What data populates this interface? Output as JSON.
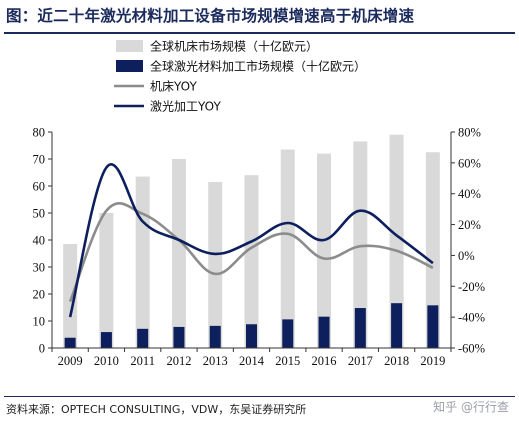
{
  "title": "图：近二十年激光材料加工设备市场规模增速高于机床增速",
  "source": "资料来源：OPTECH CONSULTING，VDW，东吴证券研究所",
  "watermark": "知乎 @行行查",
  "colors": {
    "title": "#1a2a5c",
    "gray_bar": "#d9d9d9",
    "navy_bar": "#0d1f5c",
    "gray_line": "#8c8c8c",
    "navy_line": "#0d1f5c"
  },
  "chart_data": {
    "type": "bar+line",
    "categories": [
      "2009",
      "2010",
      "2011",
      "2012",
      "2013",
      "2014",
      "2015",
      "2016",
      "2017",
      "2018",
      "2019"
    ],
    "series": [
      {
        "name": "全球机床市场规模（十亿欧元）",
        "kind": "bar",
        "axis": "left",
        "values": [
          38.5,
          50,
          63.5,
          70,
          61.5,
          64,
          73.5,
          72,
          76.5,
          79,
          72.5
        ]
      },
      {
        "name": "全球激光材料加工市场规模（十亿欧元）",
        "kind": "bar",
        "axis": "left",
        "values": [
          3.8,
          5.9,
          7.1,
          7.8,
          8.2,
          8.8,
          10.6,
          11.6,
          14.8,
          16.6,
          15.8
        ]
      },
      {
        "name": "机床YOY",
        "kind": "line",
        "axis": "right",
        "values": [
          -30,
          29,
          27,
          10,
          -12,
          5,
          14,
          -2,
          6,
          3,
          -8
        ]
      },
      {
        "name": "激光加工YOY",
        "kind": "line",
        "axis": "right",
        "values": [
          -40,
          57,
          22,
          10,
          1,
          9,
          21,
          10,
          29,
          13,
          -5
        ]
      }
    ],
    "y_left": {
      "range": [
        0,
        80
      ],
      "ticks": [
        "0",
        "10",
        "20",
        "30",
        "40",
        "50",
        "60",
        "70",
        "80"
      ]
    },
    "y_right": {
      "range": [
        -60,
        80
      ],
      "ticks": [
        "-60%",
        "-40%",
        "-20%",
        "0%",
        "20%",
        "40%",
        "60%",
        "80%"
      ]
    },
    "grid": false,
    "legend_position": "top-left"
  }
}
